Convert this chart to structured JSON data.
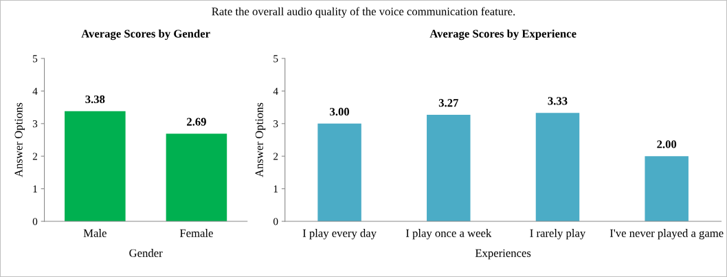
{
  "chart_data": [
    {
      "type": "bar",
      "title": "Average Scores by Gender",
      "xlabel": "Gender",
      "ylabel": "Answer Options",
      "annotations": [
        "Rate the overall audio quality of the voice communication feature."
      ],
      "categories": [
        "Male",
        "Female"
      ],
      "values": [
        3.38,
        2.69
      ],
      "value_labels": [
        "3.38",
        "2.69"
      ],
      "color": "#00b050",
      "ylim": [
        0,
        5
      ],
      "yticks": [
        0,
        1,
        2,
        3,
        4,
        5
      ]
    },
    {
      "type": "bar",
      "title": "Average Scores by Experience",
      "xlabel": "Experiences",
      "ylabel": "Answer Options",
      "categories": [
        "I play every day",
        "I play once a week",
        "I rarely play",
        "I've never played a game"
      ],
      "values": [
        3.0,
        3.27,
        3.33,
        2.0
      ],
      "value_labels": [
        "3.00",
        "3.27",
        "3.33",
        "2.00"
      ],
      "color": "#4bacc6",
      "ylim": [
        0,
        5
      ],
      "yticks": [
        0,
        1,
        2,
        3,
        4,
        5
      ]
    }
  ]
}
